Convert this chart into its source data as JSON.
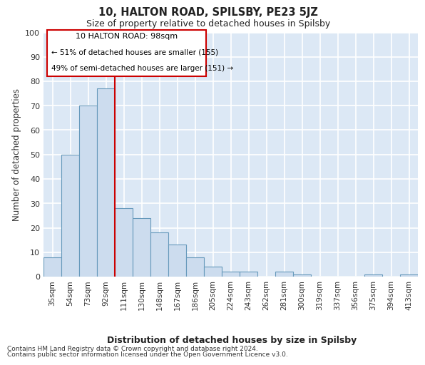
{
  "title1": "10, HALTON ROAD, SPILSBY, PE23 5JZ",
  "title2": "Size of property relative to detached houses in Spilsby",
  "xlabel": "Distribution of detached houses by size in Spilsby",
  "ylabel": "Number of detached properties",
  "categories": [
    "35sqm",
    "54sqm",
    "73sqm",
    "92sqm",
    "111sqm",
    "130sqm",
    "148sqm",
    "167sqm",
    "186sqm",
    "205sqm",
    "224sqm",
    "243sqm",
    "262sqm",
    "281sqm",
    "300sqm",
    "319sqm",
    "337sqm",
    "356sqm",
    "375sqm",
    "394sqm",
    "413sqm"
  ],
  "values": [
    8,
    50,
    70,
    77,
    28,
    24,
    18,
    13,
    8,
    4,
    2,
    2,
    0,
    2,
    1,
    0,
    0,
    0,
    1,
    0,
    1
  ],
  "bar_color": "#ccdcee",
  "bar_edge_color": "#6699bb",
  "fig_bg_color": "#ffffff",
  "plot_bg_color": "#dce8f5",
  "grid_color": "#ffffff",
  "red_line_x": 3.5,
  "annotation_title": "10 HALTON ROAD: 98sqm",
  "annotation_line1": "← 51% of detached houses are smaller (155)",
  "annotation_line2": "49% of semi-detached houses are larger (151) →",
  "box_color": "#ffffff",
  "box_edge_color": "#cc0000",
  "footnote1": "Contains HM Land Registry data © Crown copyright and database right 2024.",
  "footnote2": "Contains public sector information licensed under the Open Government Licence v3.0.",
  "ylim": [
    0,
    100
  ],
  "yticks": [
    0,
    10,
    20,
    30,
    40,
    50,
    60,
    70,
    80,
    90,
    100
  ]
}
